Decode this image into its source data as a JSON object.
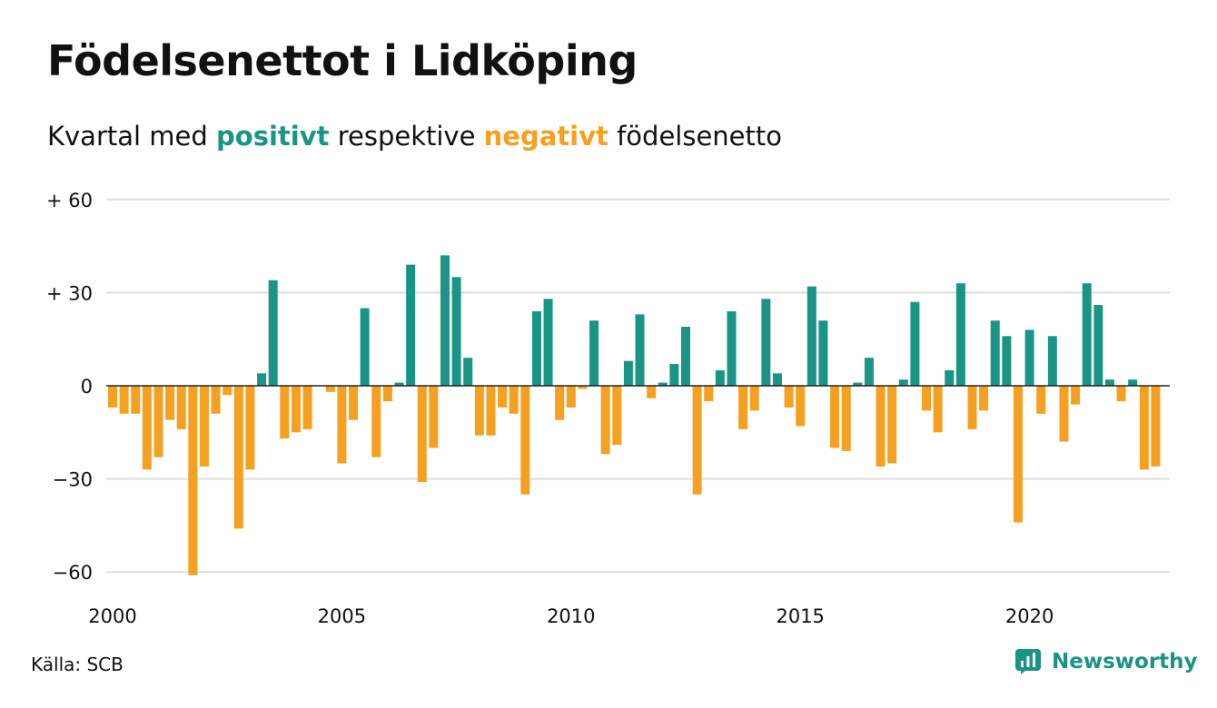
{
  "title": "Födelsenettot i Lidköping",
  "subtitle": {
    "prefix": "Kvartal med ",
    "positive_word": "positivt",
    "middle": " respektive ",
    "negative_word": "negativt",
    "suffix": " födelsenetto"
  },
  "colors": {
    "positive": "#1a9485",
    "negative": "#f5a020",
    "grid": "#dddddd",
    "text": "#111111"
  },
  "source": "Källa: SCB",
  "brand": {
    "name": "Newsworthy",
    "icon": "newsworthy-logo-icon"
  },
  "chart_data": {
    "type": "bar",
    "x": [
      "2000Q1",
      "2000Q2",
      "2000Q3",
      "2000Q4",
      "2001Q1",
      "2001Q2",
      "2001Q3",
      "2001Q4",
      "2002Q1",
      "2002Q2",
      "2002Q3",
      "2002Q4",
      "2003Q1",
      "2003Q2",
      "2003Q3",
      "2003Q4",
      "2004Q1",
      "2004Q2",
      "2004Q3",
      "2004Q4",
      "2005Q1",
      "2005Q2",
      "2005Q3",
      "2005Q4",
      "2006Q1",
      "2006Q2",
      "2006Q3",
      "2006Q4",
      "2007Q1",
      "2007Q2",
      "2007Q3",
      "2007Q4",
      "2008Q1",
      "2008Q2",
      "2008Q3",
      "2008Q4",
      "2009Q1",
      "2009Q2",
      "2009Q3",
      "2009Q4",
      "2010Q1",
      "2010Q2",
      "2010Q3",
      "2010Q4",
      "2011Q1",
      "2011Q2",
      "2011Q3",
      "2011Q4",
      "2012Q1",
      "2012Q2",
      "2012Q3",
      "2012Q4",
      "2013Q1",
      "2013Q2",
      "2013Q3",
      "2013Q4",
      "2014Q1",
      "2014Q2",
      "2014Q3",
      "2014Q4",
      "2015Q1",
      "2015Q2",
      "2015Q3",
      "2015Q4",
      "2016Q1",
      "2016Q2",
      "2016Q3",
      "2016Q4",
      "2017Q1",
      "2017Q2",
      "2017Q3",
      "2017Q4",
      "2018Q1",
      "2018Q2",
      "2018Q3",
      "2018Q4",
      "2019Q1",
      "2019Q2",
      "2019Q3",
      "2019Q4",
      "2020Q1",
      "2020Q2",
      "2020Q3",
      "2020Q4",
      "2021Q1",
      "2021Q2",
      "2021Q3",
      "2021Q4",
      "2022Q1",
      "2022Q2",
      "2022Q3",
      "2022Q4",
      "2023Q1"
    ],
    "values": [
      -7,
      -9,
      -9,
      -27,
      -23,
      -11,
      -14,
      -61,
      -26,
      -9,
      -3,
      -46,
      -27,
      4,
      34,
      -17,
      -15,
      -14,
      0,
      -2,
      -25,
      -11,
      25,
      -23,
      -5,
      1,
      39,
      -31,
      -20,
      42,
      35,
      9,
      -16,
      -16,
      -7,
      -9,
      -35,
      24,
      28,
      -11,
      -7,
      -1,
      21,
      -22,
      -19,
      8,
      23,
      -4,
      1,
      7,
      19,
      -35,
      -5,
      5,
      24,
      -14,
      -8,
      28,
      4,
      -7,
      -13,
      32,
      21,
      -20,
      -21,
      1,
      9,
      -26,
      -25,
      2,
      27,
      -8,
      -15,
      5,
      33,
      -14,
      -8,
      21,
      16,
      -44,
      18,
      -9,
      16,
      -18,
      -6,
      33,
      26,
      2,
      -5,
      2,
      -27,
      -26,
      0
    ],
    "y_ticks": [
      60,
      30,
      0,
      -30,
      -60
    ],
    "y_tick_labels": [
      "+ 60",
      "+ 30",
      "0",
      "−30",
      "−60"
    ],
    "x_tick_labels": [
      "2000",
      "2005",
      "2010",
      "2015",
      "2020"
    ],
    "ylim": [
      -62,
      62
    ],
    "xlabel": "",
    "ylabel": "",
    "grid": "horizontal",
    "legend": "none (colors explained in subtitle)"
  }
}
